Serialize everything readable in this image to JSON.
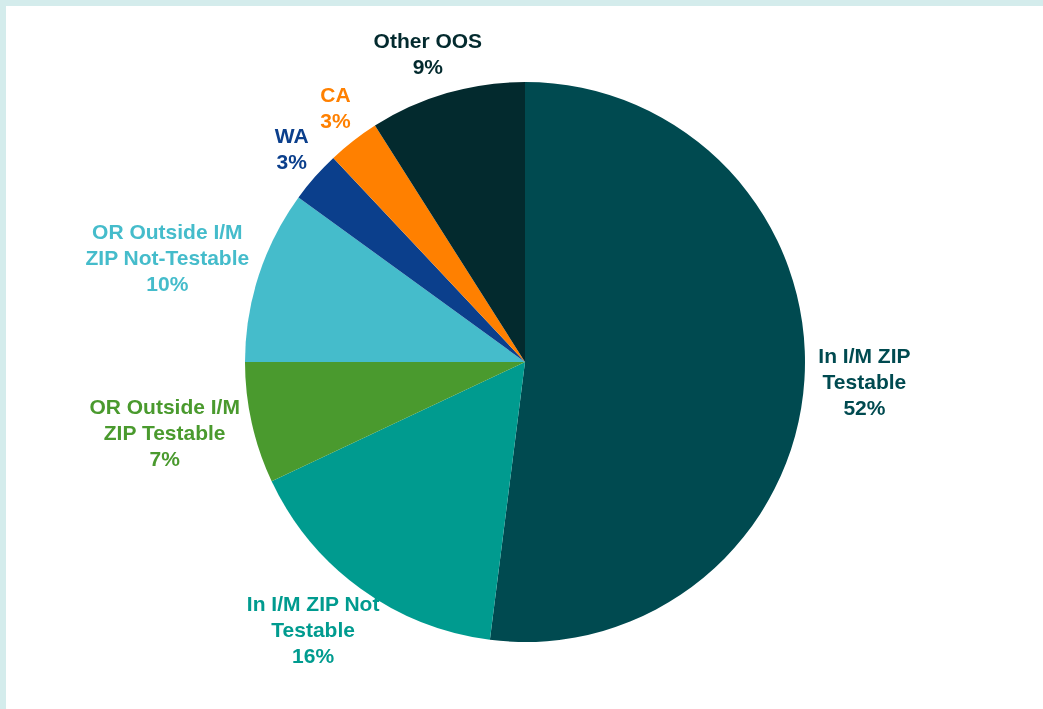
{
  "chart_data": {
    "type": "pie",
    "categories": [
      "In I/M ZIP Testable",
      "In I/M ZIP Not Testable",
      "OR Outside I/M ZIP Testable",
      "OR Outside I/M ZIP Not-Testable",
      "WA",
      "CA",
      "Other OOS"
    ],
    "values": [
      52,
      16,
      7,
      10,
      3,
      3,
      9
    ],
    "value_labels": [
      "52%",
      "16%",
      "7%",
      "10%",
      "3%",
      "3%",
      "9%"
    ],
    "colors": [
      "#004a50",
      "#009b8f",
      "#4a9a2e",
      "#45bccb",
      "#0b3f8c",
      "#ff8000",
      "#032a2e"
    ],
    "legend": false
  }
}
